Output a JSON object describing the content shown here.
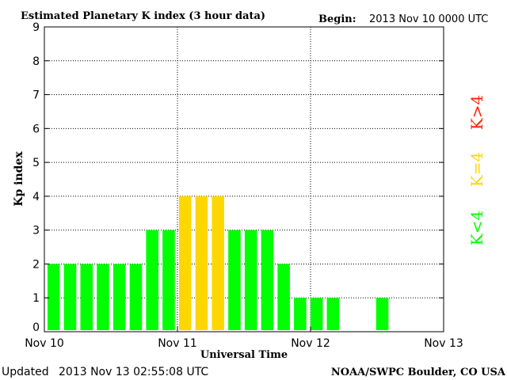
{
  "chart_data": {
    "type": "bar",
    "title": "Estimated Planetary K index (3 hour data)",
    "begin_label": "Begin:",
    "begin_value": "2013 Nov 10 0000 UTC",
    "xlabel": "Universal Time",
    "ylabel": "Kp index",
    "ylim": [
      0,
      9
    ],
    "yticks": [
      "0",
      "1",
      "2",
      "3",
      "4",
      "5",
      "6",
      "7",
      "8",
      "9"
    ],
    "xticks": [
      "Nov 10",
      "Nov 11",
      "Nov 12",
      "Nov 13"
    ],
    "interval_hours": 3,
    "values": [
      2,
      2,
      2,
      2,
      2,
      2,
      3,
      3,
      4,
      4,
      4,
      3,
      3,
      3,
      2,
      1,
      1,
      1,
      null,
      null,
      1,
      null,
      null,
      null
    ],
    "colors": {
      "below4": "#00ff00",
      "equal4": "#ffd700",
      "above4": "#ff2200"
    },
    "legend": [
      {
        "label": "K<4",
        "color": "#00ff00"
      },
      {
        "label": "K=4",
        "color": "#ffd700"
      },
      {
        "label": "K>4",
        "color": "#ff2200"
      }
    ],
    "grid": true
  },
  "footer": {
    "updated_label": "Updated",
    "updated_value": "2013 Nov 13 02:55:08 UTC",
    "source": "NOAA/SWPC Boulder, CO USA"
  }
}
